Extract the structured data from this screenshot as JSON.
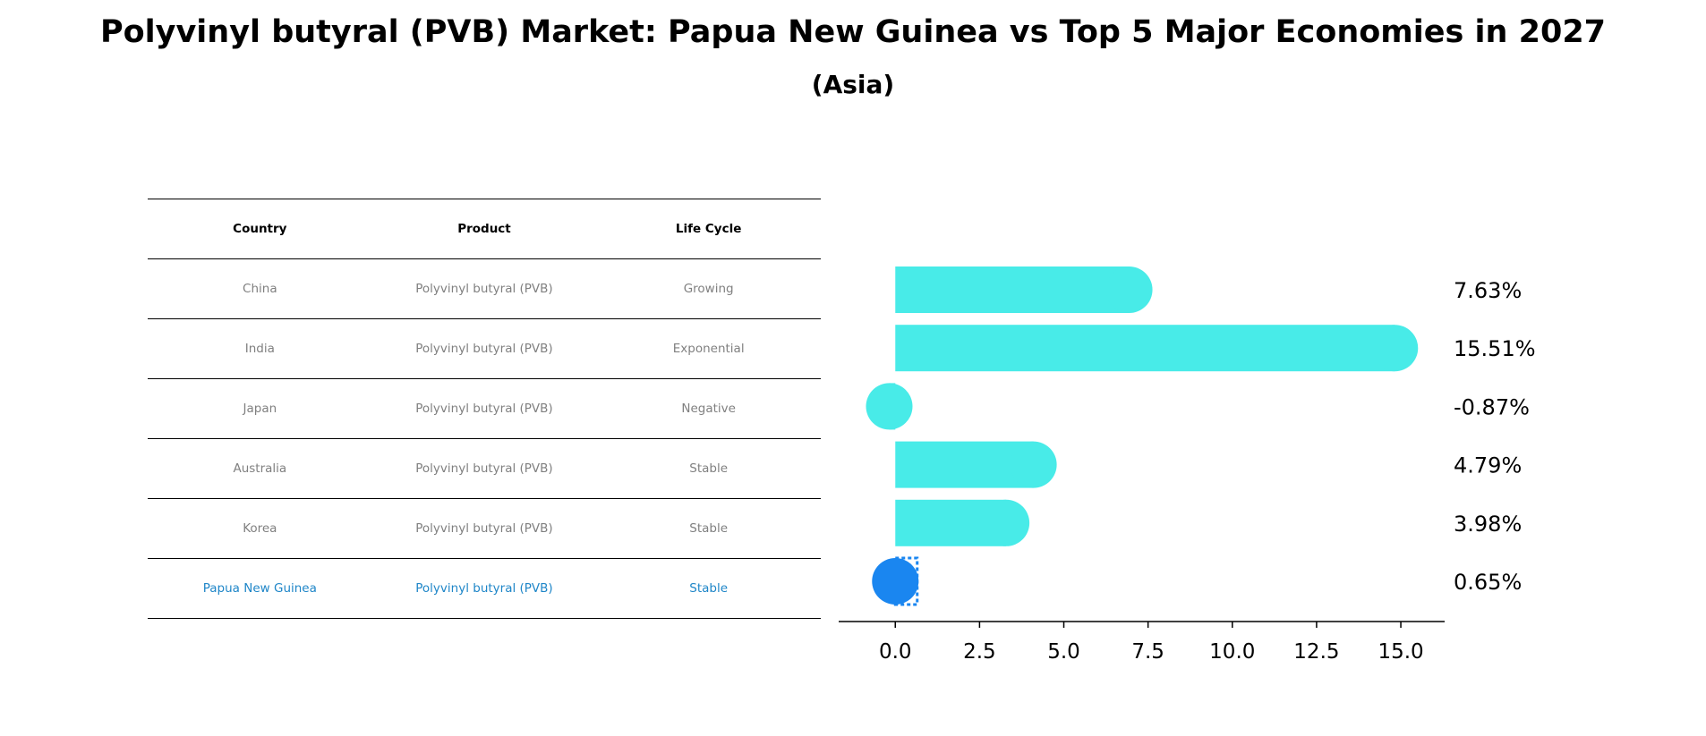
{
  "title": "Polyvinyl butyral (PVB) Market: Papua New Guinea vs Top 5 Major Economies in 2027",
  "subtitle": "(Asia)",
  "table": {
    "headers": [
      "Country",
      "Product",
      "Life Cycle"
    ],
    "rows": [
      {
        "country": "China",
        "product": "Polyvinyl butyral (PVB)",
        "life_cycle": "Growing"
      },
      {
        "country": "India",
        "product": "Polyvinyl butyral (PVB)",
        "life_cycle": "Exponential"
      },
      {
        "country": "Japan",
        "product": "Polyvinyl butyral (PVB)",
        "life_cycle": "Negative"
      },
      {
        "country": "Australia",
        "product": "Polyvinyl butyral (PVB)",
        "life_cycle": "Stable"
      },
      {
        "country": "Korea",
        "product": "Polyvinyl butyral (PVB)",
        "life_cycle": "Stable"
      },
      {
        "country": "Papua New Guinea",
        "product": "Polyvinyl butyral (PVB)",
        "life_cycle": "Stable"
      }
    ]
  },
  "chart_data": {
    "type": "bar",
    "orientation": "horizontal",
    "categories": [
      "China",
      "India",
      "Japan",
      "Australia",
      "Korea",
      "Papua New Guinea"
    ],
    "values": [
      7.63,
      15.51,
      -0.87,
      4.79,
      3.98,
      0.65
    ],
    "value_labels": [
      "7.63%",
      "15.51%",
      "-0.87%",
      "4.79%",
      "3.98%",
      "0.65%"
    ],
    "xticks": [
      "0.0",
      "2.5",
      "5.0",
      "7.5",
      "10.0",
      "12.5",
      "15.0"
    ],
    "xtick_values": [
      0,
      2.5,
      5,
      7.5,
      10,
      12.5,
      15
    ],
    "xlim": [
      -1.68,
      16.3
    ],
    "xlabel": "",
    "ylabel": "",
    "grid": false,
    "colors": {
      "bar": "#48ebe8",
      "highlight": "#1a86f0",
      "highlight_text": "#1f86c8"
    }
  }
}
